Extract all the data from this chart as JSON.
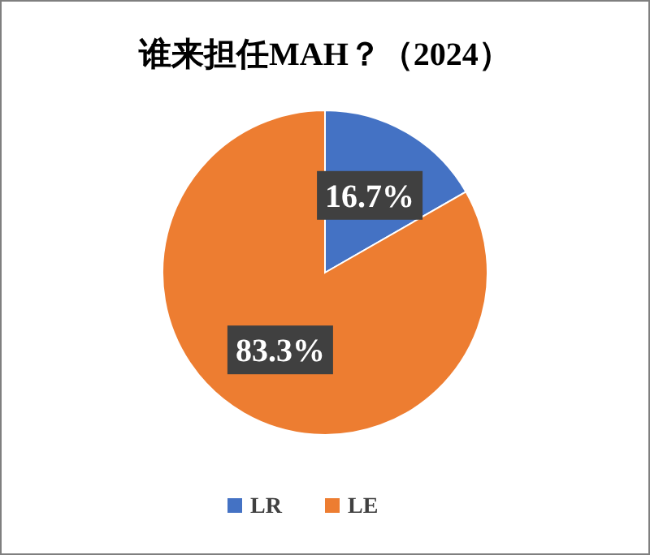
{
  "chart_data": {
    "type": "pie",
    "title": "谁来担任MAH？（2024）",
    "categories": [
      "LR",
      "LE"
    ],
    "values": [
      16.7,
      83.3
    ],
    "colors": [
      "#4472c4",
      "#ed7d31"
    ],
    "value_labels": [
      "16.7%",
      "83.3%"
    ],
    "legend": "bottom"
  }
}
